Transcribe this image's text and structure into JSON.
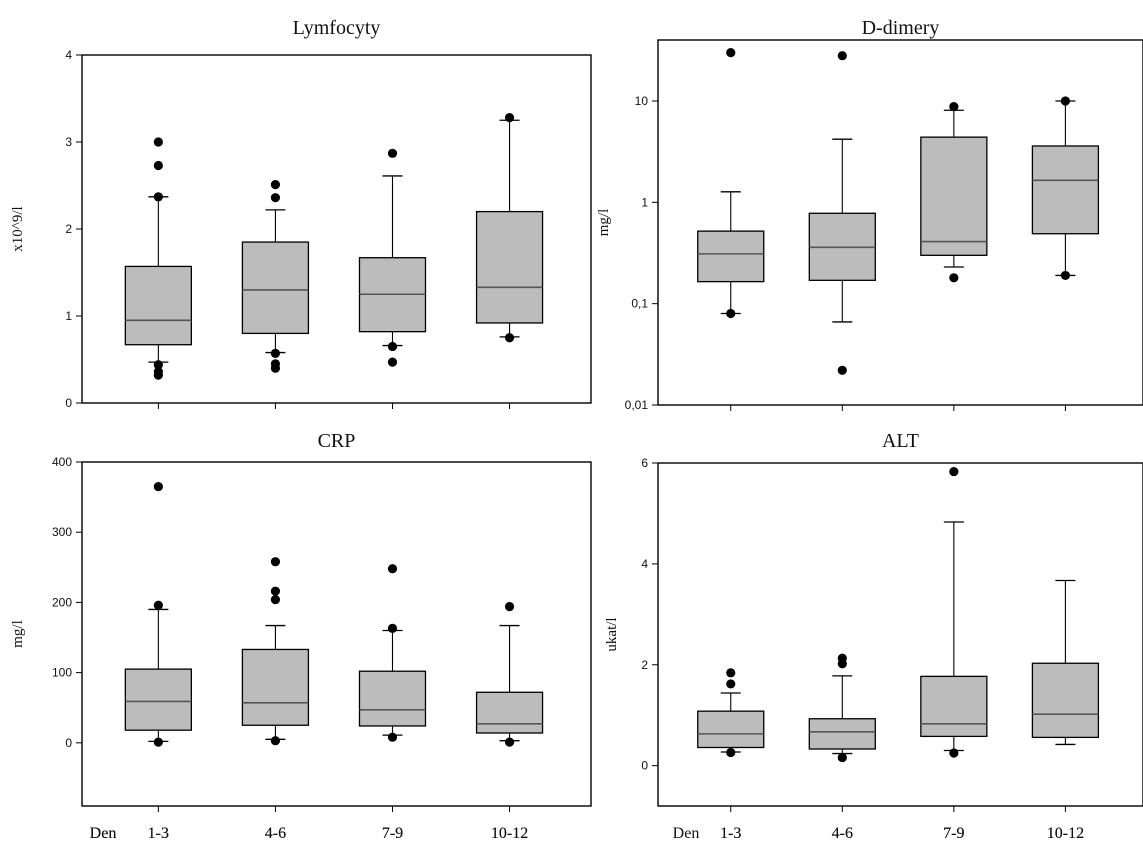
{
  "chart_data": [
    {
      "type": "box",
      "title": "Lymfocyty",
      "ylabel": "x10^9/l",
      "xlabel": "Den",
      "scale": "linear",
      "ylim": [
        0,
        4
      ],
      "yticks": [
        0,
        1,
        2,
        3,
        4
      ],
      "ytick_labels": [
        "0",
        "1",
        "2",
        "3",
        "4"
      ],
      "categories": [
        "1-3",
        "4-6",
        "7-9",
        "10-12"
      ],
      "boxes": [
        {
          "category": "1-3",
          "whisker_low": 0.47,
          "q1": 0.67,
          "median": 0.95,
          "q3": 1.57,
          "whisker_high": 2.37,
          "outliers": [
            0.32,
            0.36,
            0.44,
            2.37,
            2.73,
            3.0
          ]
        },
        {
          "category": "4-6",
          "whisker_low": 0.58,
          "q1": 0.8,
          "median": 1.3,
          "q3": 1.85,
          "whisker_high": 2.22,
          "outliers": [
            0.4,
            0.45,
            0.57,
            2.36,
            2.51
          ]
        },
        {
          "category": "7-9",
          "whisker_low": 0.66,
          "q1": 0.82,
          "median": 1.25,
          "q3": 1.67,
          "whisker_high": 2.61,
          "outliers": [
            0.47,
            0.65,
            2.87
          ]
        },
        {
          "category": "10-12",
          "whisker_low": 0.76,
          "q1": 0.92,
          "median": 1.33,
          "q3": 2.2,
          "whisker_high": 3.25,
          "outliers": [
            0.75,
            3.28
          ]
        }
      ]
    },
    {
      "type": "box",
      "title": "D-dimery",
      "ylabel": "mg/l",
      "xlabel": "",
      "scale": "log",
      "ylim": [
        0.01,
        40
      ],
      "yticks": [
        0.01,
        0.1,
        1,
        10
      ],
      "ytick_labels": [
        "0,01",
        "0,1",
        "1",
        "10"
      ],
      "categories": [
        "1-3",
        "4-6",
        "7-9",
        "10-12"
      ],
      "boxes": [
        {
          "category": "1-3",
          "whisker_low": 0.08,
          "q1": 0.165,
          "median": 0.31,
          "q3": 0.52,
          "whisker_high": 1.27,
          "outliers": [
            0.08,
            30
          ]
        },
        {
          "category": "4-6",
          "whisker_low": 0.066,
          "q1": 0.17,
          "median": 0.36,
          "q3": 0.78,
          "whisker_high": 4.2,
          "outliers": [
            0.022,
            28
          ]
        },
        {
          "category": "7-9",
          "whisker_low": 0.23,
          "q1": 0.3,
          "median": 0.41,
          "q3": 4.4,
          "whisker_high": 8.1,
          "outliers": [
            0.18,
            8.8
          ]
        },
        {
          "category": "10-12",
          "whisker_low": 0.19,
          "q1": 0.49,
          "median": 1.65,
          "q3": 3.6,
          "whisker_high": 10,
          "outliers": [
            0.19,
            10
          ]
        }
      ]
    },
    {
      "type": "box",
      "title": "CRP",
      "ylabel": "mg/l",
      "xlabel": "Den",
      "scale": "linear",
      "ylim": [
        -90,
        400
      ],
      "yticks": [
        0,
        100,
        200,
        300,
        400
      ],
      "ytick_labels": [
        "0",
        "100",
        "200",
        "300",
        "400"
      ],
      "categories": [
        "1-3",
        "4-6",
        "7-9",
        "10-12"
      ],
      "boxes": [
        {
          "category": "1-3",
          "whisker_low": 2,
          "q1": 18,
          "median": 59,
          "q3": 105,
          "whisker_high": 190,
          "outliers": [
            1,
            196,
            365
          ]
        },
        {
          "category": "4-6",
          "whisker_low": 5,
          "q1": 25,
          "median": 57,
          "q3": 133,
          "whisker_high": 167,
          "outliers": [
            3,
            204,
            216,
            258
          ]
        },
        {
          "category": "7-9",
          "whisker_low": 11,
          "q1": 24,
          "median": 47,
          "q3": 102,
          "whisker_high": 160,
          "outliers": [
            8,
            163,
            248
          ]
        },
        {
          "category": "10-12",
          "whisker_low": 3,
          "q1": 14,
          "median": 27,
          "q3": 72,
          "whisker_high": 167,
          "outliers": [
            1,
            194
          ]
        }
      ]
    },
    {
      "type": "box",
      "title": "ALT",
      "ylabel": "ukat/l",
      "xlabel": "Den",
      "scale": "linear",
      "ylim": [
        -0.8,
        6
      ],
      "yticks": [
        0,
        2,
        4,
        6
      ],
      "ytick_labels": [
        "0",
        "2",
        "4",
        "6"
      ],
      "categories": [
        "1-3",
        "4-6",
        "7-9",
        "10-12"
      ],
      "boxes": [
        {
          "category": "1-3",
          "whisker_low": 0.27,
          "q1": 0.36,
          "median": 0.63,
          "q3": 1.08,
          "whisker_high": 1.44,
          "outliers": [
            0.26,
            1.62,
            1.84
          ]
        },
        {
          "category": "4-6",
          "whisker_low": 0.24,
          "q1": 0.33,
          "median": 0.67,
          "q3": 0.93,
          "whisker_high": 1.78,
          "outliers": [
            0.16,
            2.02,
            2.13
          ]
        },
        {
          "category": "7-9",
          "whisker_low": 0.3,
          "q1": 0.58,
          "median": 0.83,
          "q3": 1.77,
          "whisker_high": 4.83,
          "outliers": [
            0.25,
            5.83
          ]
        },
        {
          "category": "10-12",
          "whisker_low": 0.42,
          "q1": 0.56,
          "median": 1.02,
          "q3": 2.03,
          "whisker_high": 3.67,
          "outliers": []
        }
      ]
    }
  ]
}
